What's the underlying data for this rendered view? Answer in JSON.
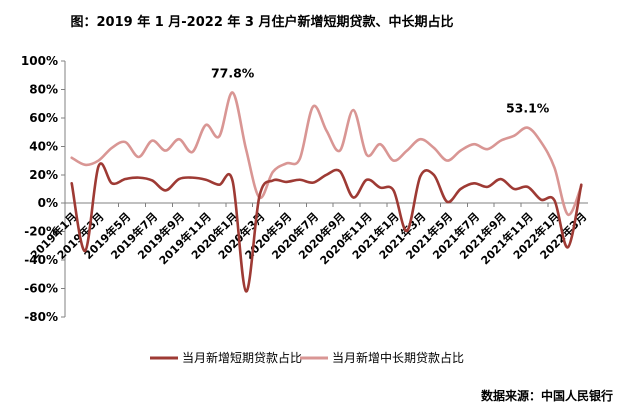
{
  "title": "图：2019 年 1 月-2022 年 3 月住户新增短期贷款、中长期占比",
  "source": "数据来源：中国人民银行",
  "colors": {
    "short_term": "#9E3A34",
    "medium_long": "#D99694",
    "axis": "#808080",
    "text": "#000000"
  },
  "legend": [
    {
      "label": "当月新增短期贷款占比"
    },
    {
      "label": "当月新增中长期贷款占比"
    }
  ],
  "annotations": [
    {
      "text": "77.8%",
      "series": 1,
      "index": 12
    },
    {
      "text": "53.1%",
      "series": 1,
      "index": 34
    }
  ],
  "chart_data": {
    "type": "line",
    "smooth": true,
    "grid": false,
    "legend_position": "bottom",
    "ylim": [
      -80,
      100
    ],
    "ytick_step": 20,
    "y_unit": "%",
    "y_tick_labels": [
      "100%",
      "80%",
      "60%",
      "40%",
      "20%",
      "0%",
      "-20%",
      "-40%",
      "-60%",
      "-80%"
    ],
    "x_tick_labels": [
      "2019年1月",
      "2019年3月",
      "2019年5月",
      "2019年7月",
      "2019年9月",
      "2019年11月",
      "2020年1月",
      "2020年3月",
      "2020年5月",
      "2020年7月",
      "2020年9月",
      "2020年11月",
      "2021年1月",
      "2021年3月",
      "2021年5月",
      "2021年7月",
      "2021年9月",
      "2021年11月",
      "2022年1月",
      "2022年3月"
    ],
    "categories": [
      "2019年1月",
      "2019年2月",
      "2019年3月",
      "2019年4月",
      "2019年5月",
      "2019年6月",
      "2019年7月",
      "2019年8月",
      "2019年9月",
      "2019年10月",
      "2019年11月",
      "2019年12月",
      "2020年1月",
      "2020年2月",
      "2020年3月",
      "2020年4月",
      "2020年5月",
      "2020年6月",
      "2020年7月",
      "2020年8月",
      "2020年9月",
      "2020年10月",
      "2020年11月",
      "2020年12月",
      "2021年1月",
      "2021年2月",
      "2021年3月",
      "2021年4月",
      "2021年5月",
      "2021年6月",
      "2021年7月",
      "2021年8月",
      "2021年9月",
      "2021年10月",
      "2021年11月",
      "2021年12月",
      "2022年1月",
      "2022年2月",
      "2022年3月"
    ],
    "series": [
      {
        "name": "当月新增短期贷款占比",
        "color": "#9E3A34",
        "values": [
          14,
          -33.5,
          26,
          14,
          17,
          18,
          16,
          9,
          17,
          18,
          16.5,
          13,
          15.5,
          -62,
          5,
          16,
          15,
          16.5,
          14.5,
          20,
          22.5,
          4,
          16.5,
          11,
          9,
          -19.5,
          19,
          20,
          1,
          10,
          14,
          11.5,
          17,
          10,
          11.5,
          2.5,
          2,
          -31,
          13
        ]
      },
      {
        "name": "当月新增中长期贷款占比",
        "color": "#D99694",
        "values": [
          32,
          27,
          30,
          39,
          43,
          32.5,
          44,
          37,
          45,
          36,
          55,
          47,
          77.8,
          38,
          4,
          22,
          28,
          31,
          68,
          51,
          37,
          65.5,
          34,
          41.5,
          30,
          37,
          45,
          39,
          30,
          37,
          41.5,
          38,
          44,
          47.5,
          53.1,
          43,
          25,
          -8,
          12
        ]
      }
    ]
  }
}
